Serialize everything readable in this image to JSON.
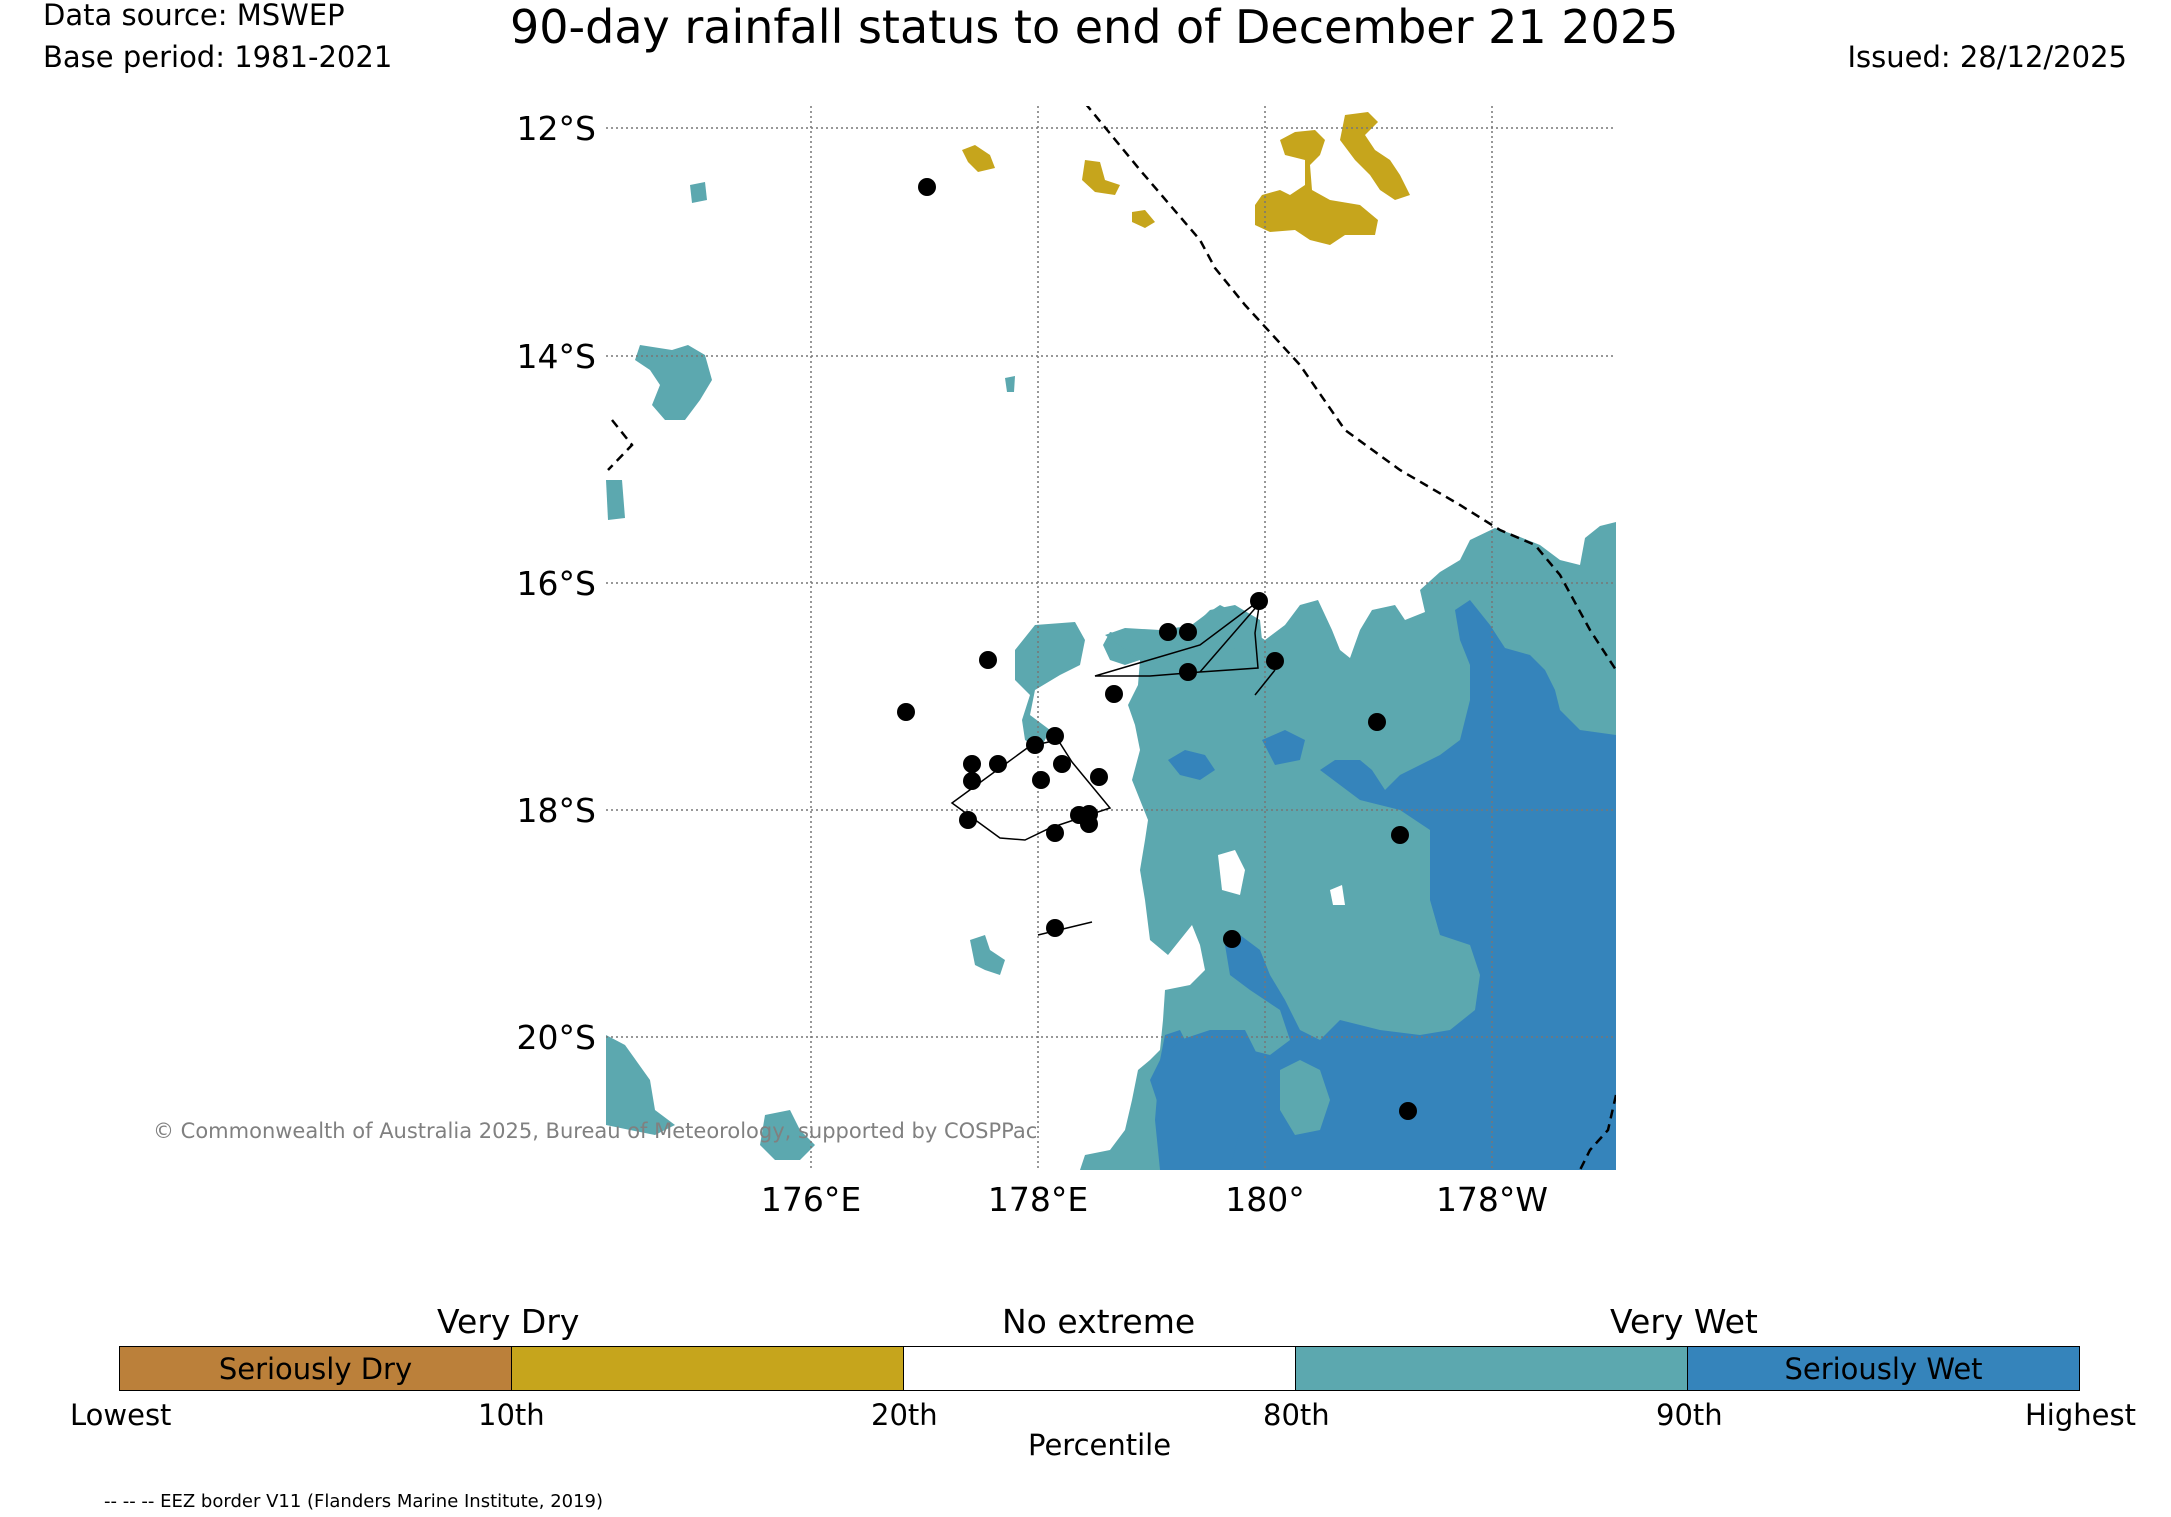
{
  "header": {
    "data_source": "Data source: MSWEP",
    "base_period": "Base period: 1981-2021",
    "title": "90-day rainfall status to end of December 21 2025",
    "issued": "Issued: 28/12/2025"
  },
  "map": {
    "lat_labels": [
      "12°S",
      "14°S",
      "16°S",
      "18°S",
      "20°S"
    ],
    "lon_labels": [
      "176°E",
      "178°E",
      "180°",
      "178°W"
    ],
    "copyright": "© Commonwealth of Australia 2025, Bureau of Meteorology, supported by COSPPac",
    "colors": {
      "very_dry": "#c6a51c",
      "very_wet": "#5ca8af",
      "seriously_wet": "#3584bb",
      "seriously_dry": "#bb803a"
    }
  },
  "legend": {
    "top_labels": {
      "very_dry": "Very Dry",
      "no_extreme": "No extreme",
      "very_wet": "Very Wet"
    },
    "segments": [
      {
        "label": "Seriously Dry",
        "color": "#bb803a"
      },
      {
        "label": "",
        "color": "#c6a51c"
      },
      {
        "label": "",
        "color": "#ffffff"
      },
      {
        "label": "",
        "color": "#5ca8af"
      },
      {
        "label": "Seriously Wet",
        "color": "#3584bb"
      }
    ],
    "ticks": [
      "Lowest",
      "10th",
      "20th",
      "80th",
      "90th",
      "Highest"
    ],
    "axis_label": "Percentile"
  },
  "footer": {
    "eez_note": "-- -- -- EEZ border V11 (Flanders Marine Institute, 2019)"
  }
}
